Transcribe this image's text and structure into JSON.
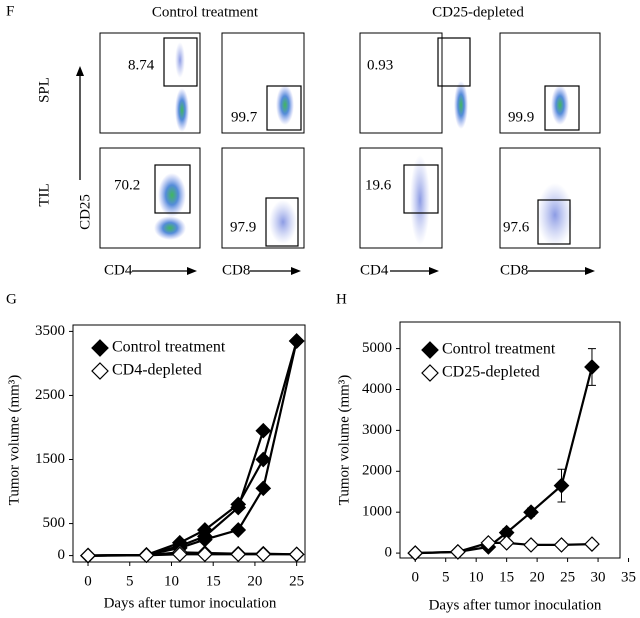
{
  "panel_f": {
    "label": "F",
    "columns": [
      "Control treatment",
      "CD25-depleted"
    ],
    "rows": [
      "SPL",
      "TIL"
    ],
    "y_axis": "CD25",
    "x_axes": [
      "CD4",
      "CD8",
      "CD4",
      "CD8"
    ],
    "gates": [
      [
        "8.74",
        "99.7",
        "0.93",
        "99.9"
      ],
      [
        "70.2",
        "97.9",
        "19.6",
        "97.6"
      ]
    ]
  },
  "chart_data": [
    {
      "type": "line",
      "panel": "G",
      "y_label": "Tumor volume (mm³)",
      "x_label": "Days after tumor inoculation",
      "x": [
        0,
        7,
        11,
        14,
        18,
        21,
        25
      ],
      "xlim": [
        -1.8,
        26
      ],
      "xticks": [
        0,
        5,
        10,
        15,
        20,
        25
      ],
      "ylim": [
        -100,
        3600
      ],
      "yticks": [
        0,
        500,
        1500,
        2500,
        3500
      ],
      "legend": "upper left",
      "series": [
        {
          "name": "Control treatment",
          "color": "#000000",
          "marker_fill": "#000000",
          "values": [
            [
              0,
              10,
              200,
              400,
              800,
              1500,
              3350
            ],
            [
              0,
              10,
              150,
              300,
              750,
              1950,
              null
            ],
            [
              0,
              10,
              120,
              250,
              400,
              1050,
              3350
            ]
          ]
        },
        {
          "name": "CD4-depleted",
          "color": "#000000",
          "marker_fill": "#ffffff",
          "values": [
            [
              0,
              5,
              50,
              40,
              30,
              30,
              20
            ],
            [
              0,
              5,
              20,
              20,
              20,
              20,
              20
            ]
          ]
        }
      ]
    },
    {
      "type": "line",
      "panel": "H",
      "y_label": "Tumor volume (mm³)",
      "x_label": "Days after tumor inoculation",
      "x": [
        0,
        7,
        12,
        15,
        19,
        24,
        29
      ],
      "xlim": [
        -2.5,
        33.6
      ],
      "xticks": [
        0,
        5,
        10,
        15,
        20,
        25,
        30,
        35
      ],
      "ylim": [
        -120,
        5650
      ],
      "yticks": [
        0,
        1000,
        2000,
        3000,
        4000,
        5000
      ],
      "legend": "upper left",
      "series": [
        {
          "name": "Control treatment",
          "color": "#000000",
          "marker_fill": "#000000",
          "values": [
            0,
            30,
            150,
            500,
            1000,
            1650,
            4550
          ],
          "errors": [
            0,
            0,
            50,
            100,
            100,
            400,
            450
          ]
        },
        {
          "name": "CD25-depleted",
          "color": "#000000",
          "marker_fill": "#ffffff",
          "values": [
            0,
            30,
            250,
            250,
            200,
            200,
            220
          ],
          "errors": [
            0,
            0,
            50,
            50,
            30,
            30,
            30
          ]
        }
      ]
    }
  ]
}
